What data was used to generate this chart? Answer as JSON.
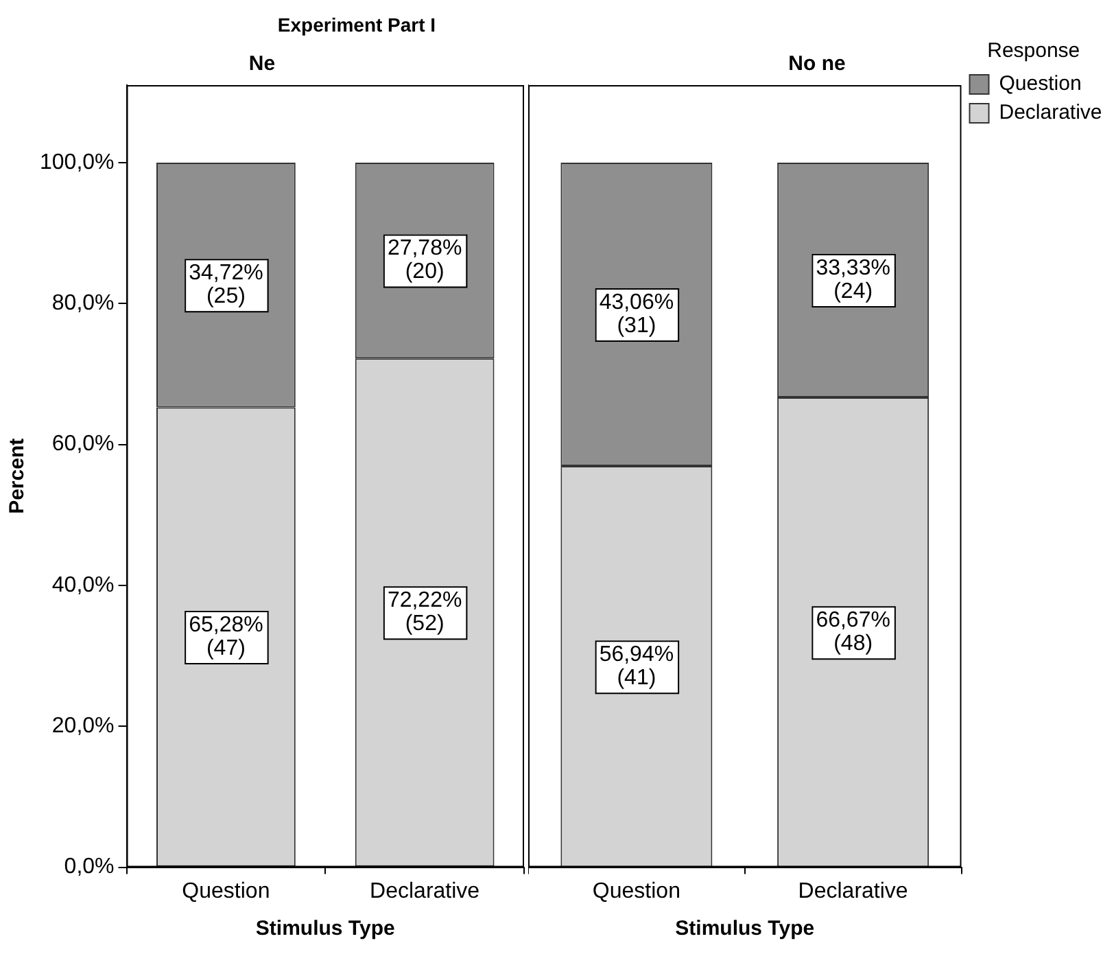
{
  "chart_data": [
    {
      "type": "bar",
      "title": "Experiment Part I",
      "subtitle": "Ne",
      "xlabel": "Stimulus Type",
      "ylabel": "Percent",
      "categories": [
        "Question",
        "Declarative"
      ],
      "stacked": true,
      "grid": false,
      "ylim": [
        0,
        111
      ],
      "yticks": [
        {
          "value": 0,
          "label": "0,0%"
        },
        {
          "value": 20,
          "label": "20,0%"
        },
        {
          "value": 40,
          "label": "40,0%"
        },
        {
          "value": 60,
          "label": "60,0%"
        },
        {
          "value": 80,
          "label": "80,0%"
        },
        {
          "value": 100,
          "label": "100,0%"
        }
      ],
      "series": [
        {
          "color": "#d3d3d3",
          "values": [
            65.28,
            72.22
          ],
          "value_labels": [
            "65,28%\n(47)",
            "72,22%\n(52)"
          ]
        },
        {
          "color": "#8f8f8f",
          "values": [
            34.72,
            27.78
          ],
          "value_labels": [
            "34,72%\n(25)",
            "27,78%\n(20)"
          ]
        }
      ]
    },
    {
      "type": "bar",
      "subtitle": "No ne",
      "xlabel": "Stimulus Type",
      "categories": [
        "Question",
        "Declarative"
      ],
      "stacked": true,
      "grid": false,
      "ylim": [
        0,
        111
      ],
      "tick_labels": "x",
      "legend": "top right",
      "legend_title": "Response",
      "series": [
        {
          "name": "Declarative",
          "color": "#d3d3d3",
          "values": [
            56.94,
            66.67
          ],
          "value_labels": [
            "56,94%\n(41)",
            "66,67%\n(48)"
          ]
        },
        {
          "name": "Question",
          "color": "#8f8f8f",
          "values": [
            43.06,
            33.33
          ],
          "value_labels": [
            "43,06%\n(31)",
            "33,33%\n(24)"
          ]
        }
      ]
    }
  ]
}
